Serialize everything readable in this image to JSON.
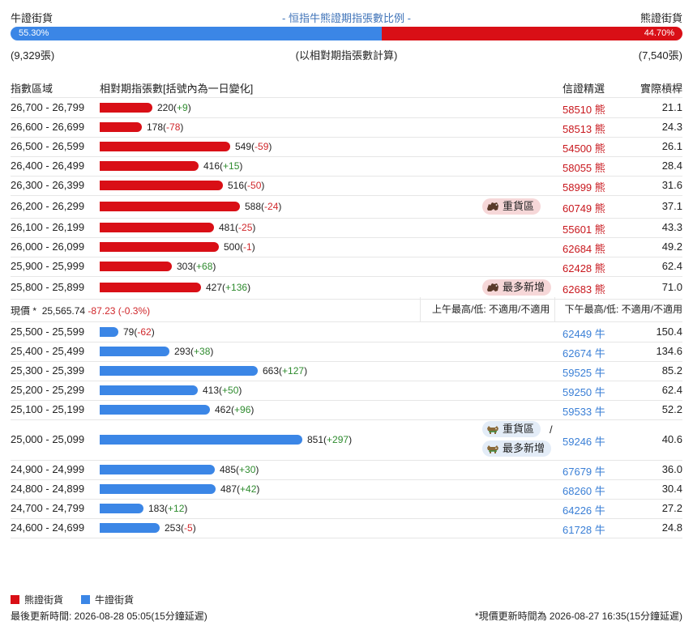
{
  "header": {
    "bull_label": "牛證街貨",
    "bear_label": "熊證街貨",
    "title": "- 恒指牛熊證期指張數比例 -",
    "bull_pct": "55.30%",
    "bear_pct": "44.70%",
    "bull_ratio": 55.3,
    "bull_count": "(9,329張)",
    "bear_count": "(7,540張)",
    "note": "(以相對期指張數計算)"
  },
  "columns": {
    "range": "指數區域",
    "contracts": "相對期指張數[括號內為一日變化]",
    "warrant": "信證精選",
    "leverage": "實際槓桿"
  },
  "chart_data": {
    "type": "bar",
    "max_value": 851,
    "bear_rows": [
      {
        "range": "26,700 - 26,799",
        "value": 220,
        "change": "+9",
        "code": "58510",
        "side": "熊",
        "leverage": "21.1"
      },
      {
        "range": "26,600 - 26,699",
        "value": 178,
        "change": "-78",
        "code": "58513",
        "side": "熊",
        "leverage": "24.3"
      },
      {
        "range": "26,500 - 26,599",
        "value": 549,
        "change": "-59",
        "code": "54500",
        "side": "熊",
        "leverage": "26.1"
      },
      {
        "range": "26,400 - 26,499",
        "value": 416,
        "change": "+15",
        "code": "58055",
        "side": "熊",
        "leverage": "28.4"
      },
      {
        "range": "26,300 - 26,399",
        "value": 516,
        "change": "-50",
        "code": "58999",
        "side": "熊",
        "leverage": "31.6"
      },
      {
        "range": "26,200 - 26,299",
        "value": 588,
        "change": "-24",
        "code": "60749",
        "side": "熊",
        "leverage": "37.1",
        "badges": [
          "重貨區"
        ]
      },
      {
        "range": "26,100 - 26,199",
        "value": 481,
        "change": "-25",
        "code": "55601",
        "side": "熊",
        "leverage": "43.3"
      },
      {
        "range": "26,000 - 26,099",
        "value": 500,
        "change": "-1",
        "code": "62684",
        "side": "熊",
        "leverage": "49.2"
      },
      {
        "range": "25,900 - 25,999",
        "value": 303,
        "change": "+68",
        "code": "62428",
        "side": "熊",
        "leverage": "62.4"
      },
      {
        "range": "25,800 - 25,899",
        "value": 427,
        "change": "+136",
        "code": "62683",
        "side": "熊",
        "leverage": "71.0",
        "badges": [
          "最多新增"
        ]
      }
    ],
    "bull_rows": [
      {
        "range": "25,500 - 25,599",
        "value": 79,
        "change": "-62",
        "code": "62449",
        "side": "牛",
        "leverage": "150.4"
      },
      {
        "range": "25,400 - 25,499",
        "value": 293,
        "change": "+38",
        "code": "62674",
        "side": "牛",
        "leverage": "134.6"
      },
      {
        "range": "25,300 - 25,399",
        "value": 663,
        "change": "+127",
        "code": "59525",
        "side": "牛",
        "leverage": "85.2"
      },
      {
        "range": "25,200 - 25,299",
        "value": 413,
        "change": "+50",
        "code": "59250",
        "side": "牛",
        "leverage": "62.4"
      },
      {
        "range": "25,100 - 25,199",
        "value": 462,
        "change": "+96",
        "code": "59533",
        "side": "牛",
        "leverage": "52.2"
      },
      {
        "range": "25,000 - 25,099",
        "value": 851,
        "change": "+297",
        "code": "59246",
        "side": "牛",
        "leverage": "40.6",
        "badges": [
          "重貨區",
          "最多新增"
        ]
      },
      {
        "range": "24,900 - 24,999",
        "value": 485,
        "change": "+30",
        "code": "67679",
        "side": "牛",
        "leverage": "36.0"
      },
      {
        "range": "24,800 - 24,899",
        "value": 487,
        "change": "+42",
        "code": "68260",
        "side": "牛",
        "leverage": "30.4"
      },
      {
        "range": "24,700 - 24,799",
        "value": 183,
        "change": "+12",
        "code": "64226",
        "side": "牛",
        "leverage": "27.2"
      },
      {
        "range": "24,600 - 24,699",
        "value": 253,
        "change": "-5",
        "code": "61728",
        "side": "牛",
        "leverage": "24.8"
      }
    ]
  },
  "price": {
    "label": "現價 *",
    "value": "25,565.74",
    "change": "-87.23 (-0.3%)",
    "am": "上午最高/低: 不適用/不適用",
    "pm": "下午最高/低: 不適用/不適用"
  },
  "badge_sep": "/",
  "legend": {
    "bear": "熊證街貨",
    "bull": "牛證街貨",
    "bear_color": "#d90f16",
    "bull_color": "#3b86e6"
  },
  "footer": {
    "updated": "最後更新時間: 2026-08-28 05:05(15分鐘延遲)",
    "price_updated": "*現價更新時間為 2026-08-27 16:35(15分鐘延遲)"
  }
}
